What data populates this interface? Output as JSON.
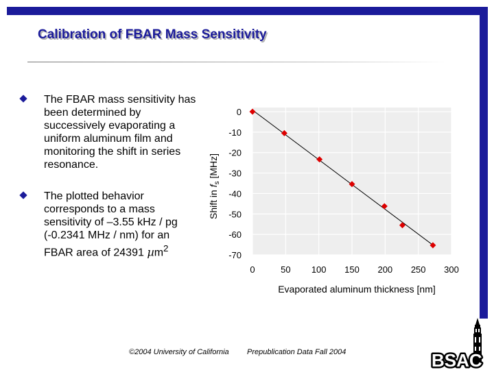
{
  "slide": {
    "title": "Calibration of FBAR Mass Sensitivity",
    "bullets": [
      {
        "text": "The FBAR mass sensitivity has been determined by successively evaporating a uniform aluminum film and monitoring the shift in series resonance."
      },
      {
        "text": "The plotted behavior corresponds to a mass sensitivity of –3.55 kHz / pg (-0.2341 MHz / nm) for an FBAR area of 24391 ",
        "unit_symbol": "µ",
        "unit_rest": "m",
        "unit_sup": "2"
      }
    ],
    "colors": {
      "frame": "#1b1b9a",
      "title": "#1b1b9a",
      "marker": "#dd0000"
    }
  },
  "footer": {
    "copyright": "©2004 University of California",
    "note": "Prepublication Data Fall 2004"
  },
  "logo": {
    "text": "BSAC",
    "icon": "campanile-tower-icon"
  },
  "chart_data": {
    "type": "scatter",
    "xlabel": "Evaporated aluminum thickness [nm]",
    "ylabel": {
      "prefix": "Shift in ",
      "symbol": "f",
      "subscript": "s",
      "suffix": " [MHz]"
    },
    "xlim": [
      0,
      300
    ],
    "ylim": [
      -70,
      0
    ],
    "xticks": [
      0,
      50,
      100,
      150,
      200,
      250,
      300
    ],
    "yticks": [
      0,
      -10,
      -20,
      -30,
      -40,
      -50,
      -60,
      -70
    ],
    "grid": true,
    "marker": "diamond",
    "trendline": true,
    "series": [
      {
        "x": [
          0,
          48,
          101,
          150,
          199,
          226,
          272
        ],
        "y": [
          0,
          -10.5,
          -23.3,
          -35.4,
          -46.2,
          -55.5,
          -65.3
        ]
      }
    ]
  }
}
